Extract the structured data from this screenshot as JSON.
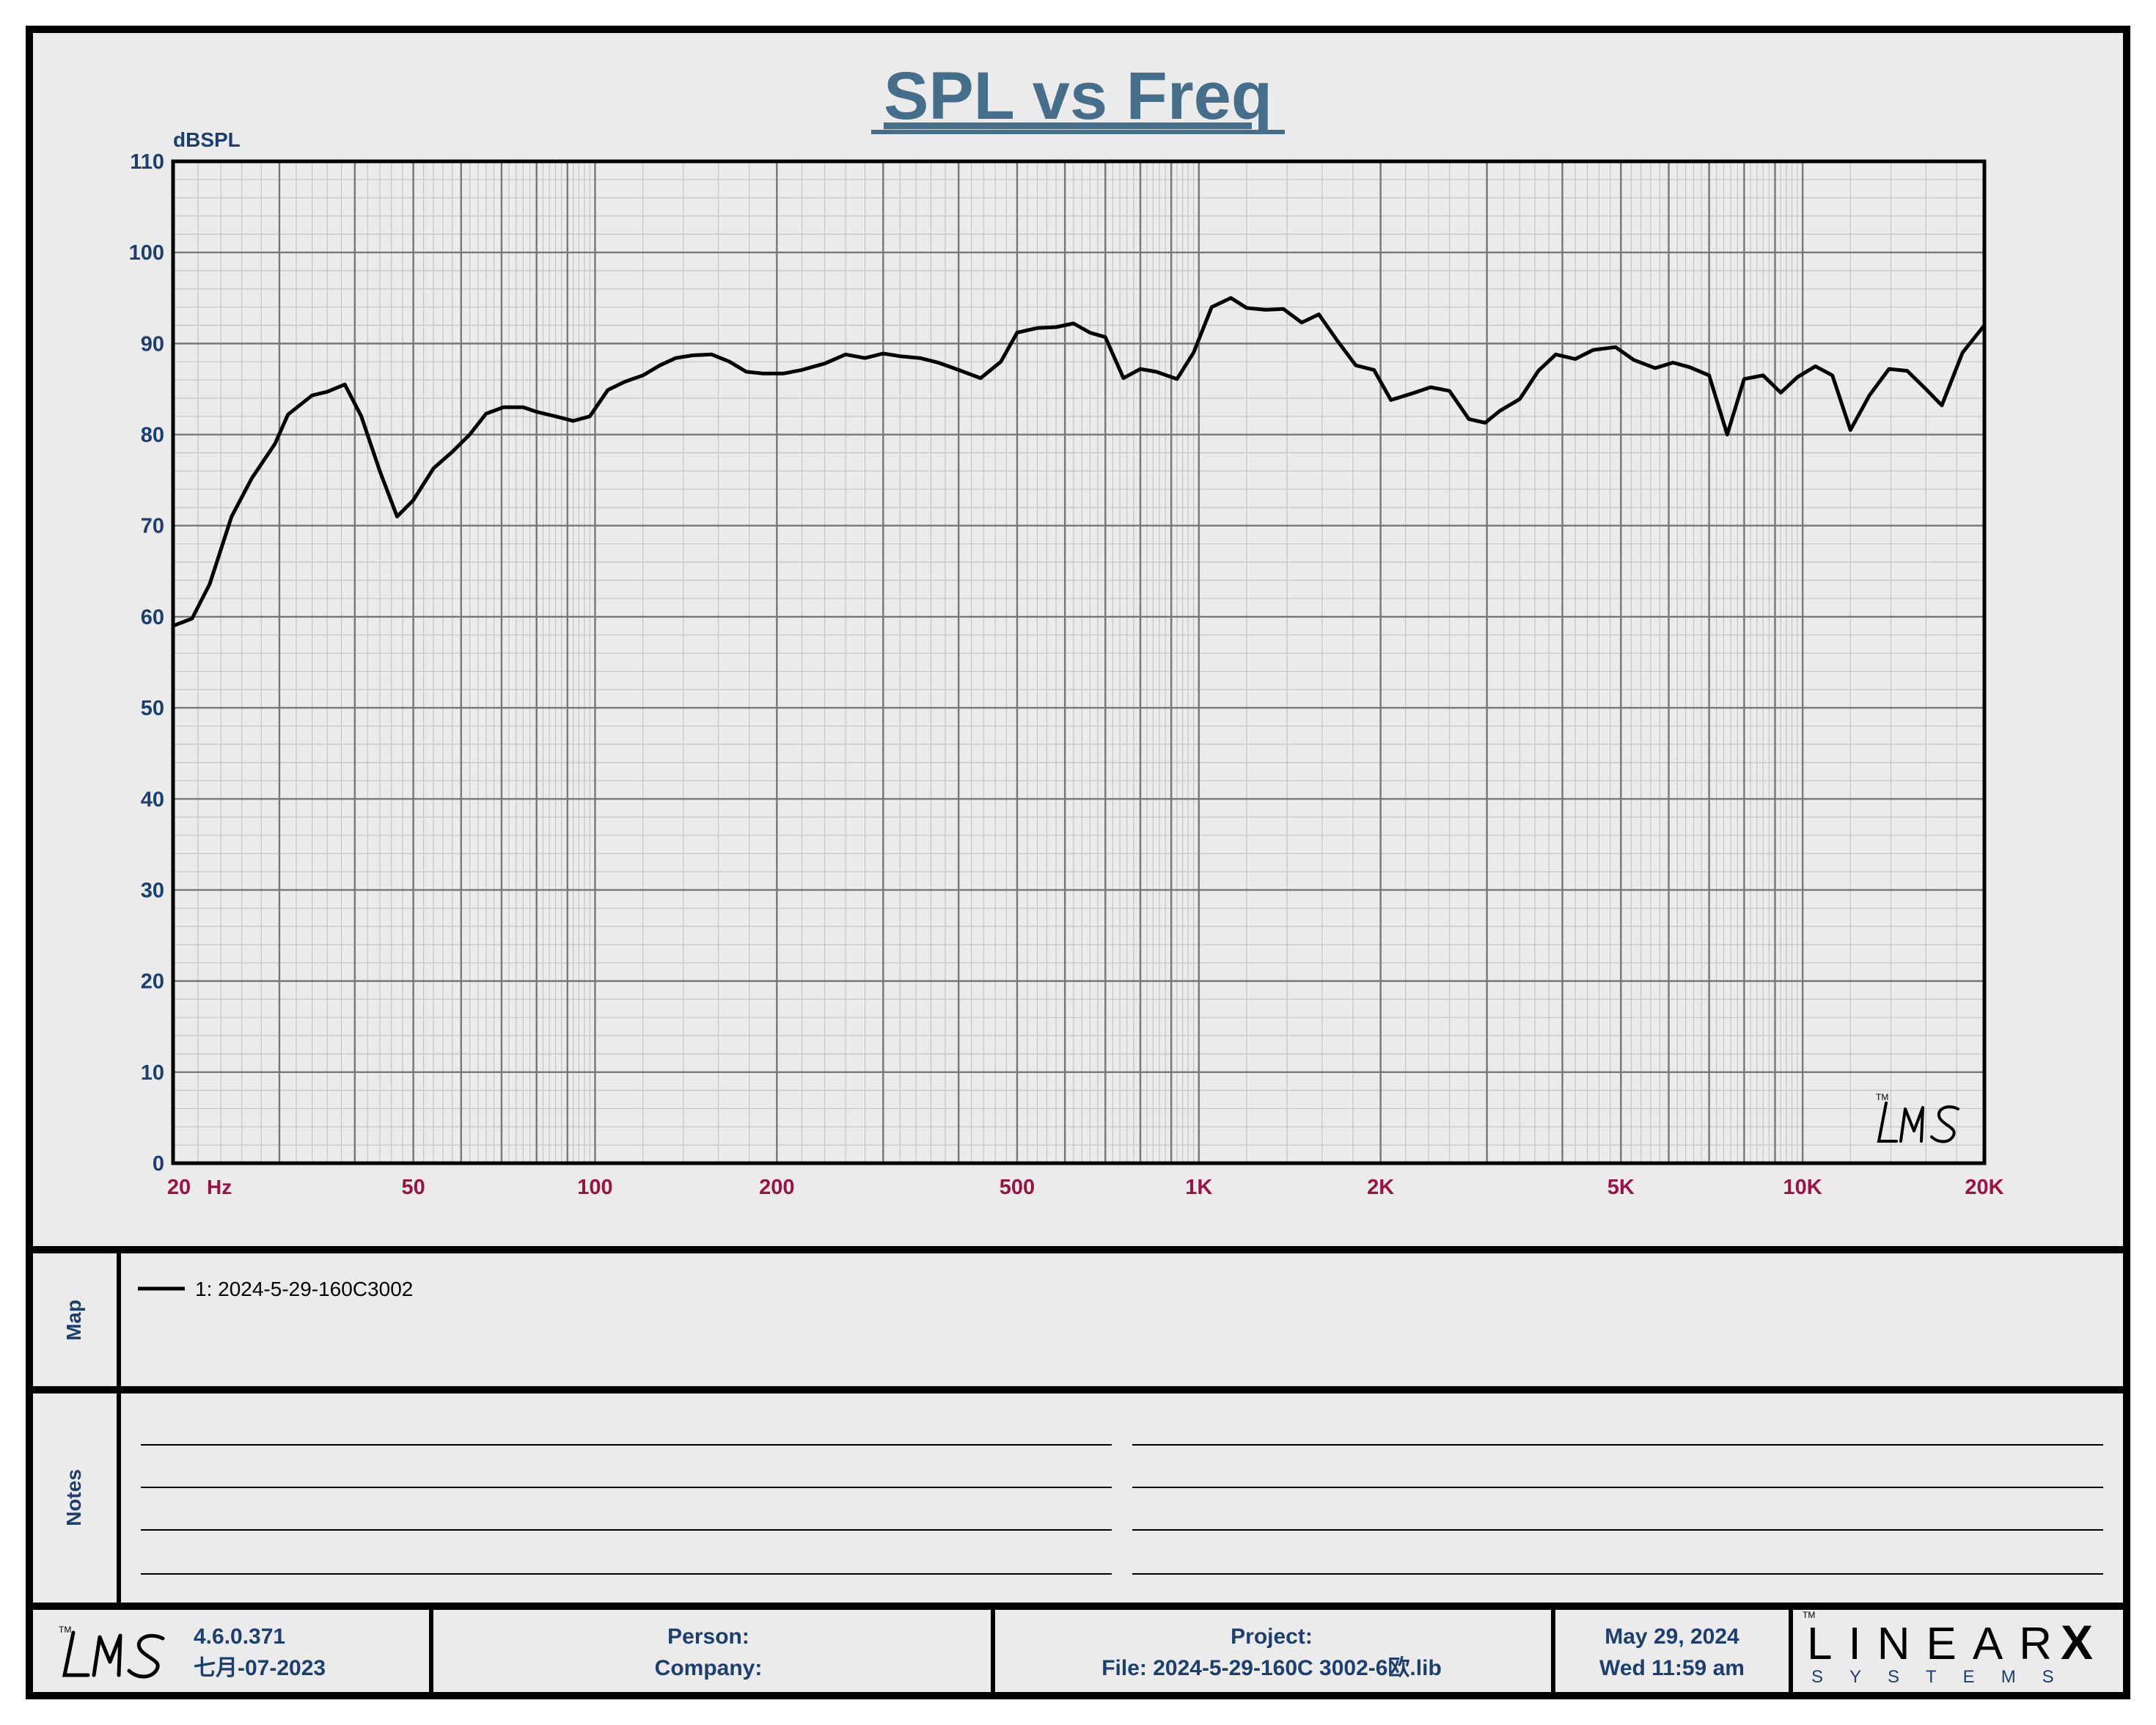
{
  "chart_data": {
    "type": "line",
    "title": "SPL vs Freq",
    "ylabel": "dBSPL",
    "xlabel": "",
    "x_scale": "log",
    "xlim": [
      20,
      20000
    ],
    "ylim": [
      0,
      110
    ],
    "yticks": [
      0,
      10,
      20,
      30,
      40,
      50,
      60,
      70,
      80,
      90,
      100,
      110
    ],
    "xtick_labels": [
      {
        "v": 20,
        "label": "20"
      },
      {
        "v": 50,
        "label": "50"
      },
      {
        "v": 100,
        "label": "100"
      },
      {
        "v": 200,
        "label": "200"
      },
      {
        "v": 500,
        "label": "500"
      },
      {
        "v": 1000,
        "label": "1K"
      },
      {
        "v": 2000,
        "label": "2K"
      },
      {
        "v": 5000,
        "label": "5K"
      },
      {
        "v": 10000,
        "label": "10K"
      },
      {
        "v": 20000,
        "label": "20K"
      }
    ],
    "x_unit": "Hz",
    "grid": true,
    "series": [
      {
        "name": "1: 2024-5-29-160C3002",
        "color": "#000000",
        "points": [
          [
            20,
            59
          ],
          [
            21.5,
            59.8
          ],
          [
            23,
            63.6
          ],
          [
            25,
            71
          ],
          [
            27,
            75.2
          ],
          [
            29.5,
            79
          ],
          [
            31,
            82.2
          ],
          [
            34,
            84.3
          ],
          [
            36,
            84.7
          ],
          [
            38.5,
            85.5
          ],
          [
            41,
            82
          ],
          [
            44,
            76
          ],
          [
            47,
            71
          ],
          [
            50,
            72.8
          ],
          [
            54,
            76.3
          ],
          [
            58,
            78.1
          ],
          [
            62,
            80
          ],
          [
            66,
            82.3
          ],
          [
            70.5,
            83
          ],
          [
            76,
            83
          ],
          [
            80,
            82.5
          ],
          [
            86,
            82
          ],
          [
            92,
            81.5
          ],
          [
            98,
            82
          ],
          [
            105,
            84.9
          ],
          [
            112,
            85.8
          ],
          [
            120,
            86.5
          ],
          [
            128,
            87.6
          ],
          [
            136,
            88.4
          ],
          [
            145,
            88.7
          ],
          [
            156,
            88.8
          ],
          [
            167,
            88
          ],
          [
            178,
            86.9
          ],
          [
            190,
            86.7
          ],
          [
            205,
            86.7
          ],
          [
            220,
            87.1
          ],
          [
            240,
            87.8
          ],
          [
            260,
            88.8
          ],
          [
            280,
            88.4
          ],
          [
            300,
            88.9
          ],
          [
            320,
            88.6
          ],
          [
            345,
            88.4
          ],
          [
            370,
            87.9
          ],
          [
            400,
            87.1
          ],
          [
            435,
            86.2
          ],
          [
            470,
            88
          ],
          [
            500,
            91.2
          ],
          [
            540,
            91.7
          ],
          [
            580,
            91.8
          ],
          [
            620,
            92.2
          ],
          [
            660,
            91.2
          ],
          [
            700,
            90.7
          ],
          [
            750,
            86.2
          ],
          [
            800,
            87.2
          ],
          [
            850,
            86.9
          ],
          [
            920,
            86.1
          ],
          [
            980,
            89
          ],
          [
            1050,
            94
          ],
          [
            1130,
            95
          ],
          [
            1200,
            93.9
          ],
          [
            1290,
            93.7
          ],
          [
            1380,
            93.8
          ],
          [
            1480,
            92.3
          ],
          [
            1580,
            93.2
          ],
          [
            1700,
            90.2
          ],
          [
            1820,
            87.6
          ],
          [
            1950,
            87.1
          ],
          [
            2080,
            83.8
          ],
          [
            2250,
            84.5
          ],
          [
            2420,
            85.2
          ],
          [
            2600,
            84.8
          ],
          [
            2800,
            81.7
          ],
          [
            2980,
            81.3
          ],
          [
            3150,
            82.6
          ],
          [
            3400,
            83.9
          ],
          [
            3650,
            87
          ],
          [
            3900,
            88.8
          ],
          [
            4200,
            88.3
          ],
          [
            4500,
            89.3
          ],
          [
            4900,
            89.6
          ],
          [
            5250,
            88.2
          ],
          [
            5700,
            87.3
          ],
          [
            6100,
            87.9
          ],
          [
            6500,
            87.4
          ],
          [
            7000,
            86.5
          ],
          [
            7500,
            80
          ],
          [
            8000,
            86.1
          ],
          [
            8600,
            86.5
          ],
          [
            9200,
            84.6
          ],
          [
            9800,
            86.3
          ],
          [
            10500,
            87.5
          ],
          [
            11200,
            86.5
          ],
          [
            12000,
            80.5
          ],
          [
            12900,
            84.3
          ],
          [
            13900,
            87.2
          ],
          [
            14900,
            87
          ],
          [
            16000,
            85
          ],
          [
            17000,
            83.2
          ],
          [
            18400,
            89
          ],
          [
            20000,
            92
          ]
        ]
      }
    ],
    "legend_position": "map-panel"
  },
  "colors": {
    "title": "#456e8a",
    "axis_text": "#1c3f6e",
    "x_tick_text": "#9b1346",
    "panel_bg": "#ebebeb",
    "frame": "#000000"
  },
  "map": {
    "label": "Map",
    "entries": [
      {
        "text": "1: 2024-5-29-160C3002",
        "color": "#000000"
      }
    ]
  },
  "notes": {
    "label": "Notes"
  },
  "footer": {
    "logo": "LMS",
    "version": "4.6.0.371",
    "build_date": "七月-07-2023",
    "person_label": "Person:",
    "company_label": "Company:",
    "project_label": "Project:",
    "file_label": "File: 2024-5-29-160C 3002-6欧.lib",
    "date": "May 29, 2024",
    "time": "Wed 11:59 am",
    "brand_top": "LINEAR",
    "brand_x": "X",
    "brand_bottom": "SYSTEMS"
  }
}
